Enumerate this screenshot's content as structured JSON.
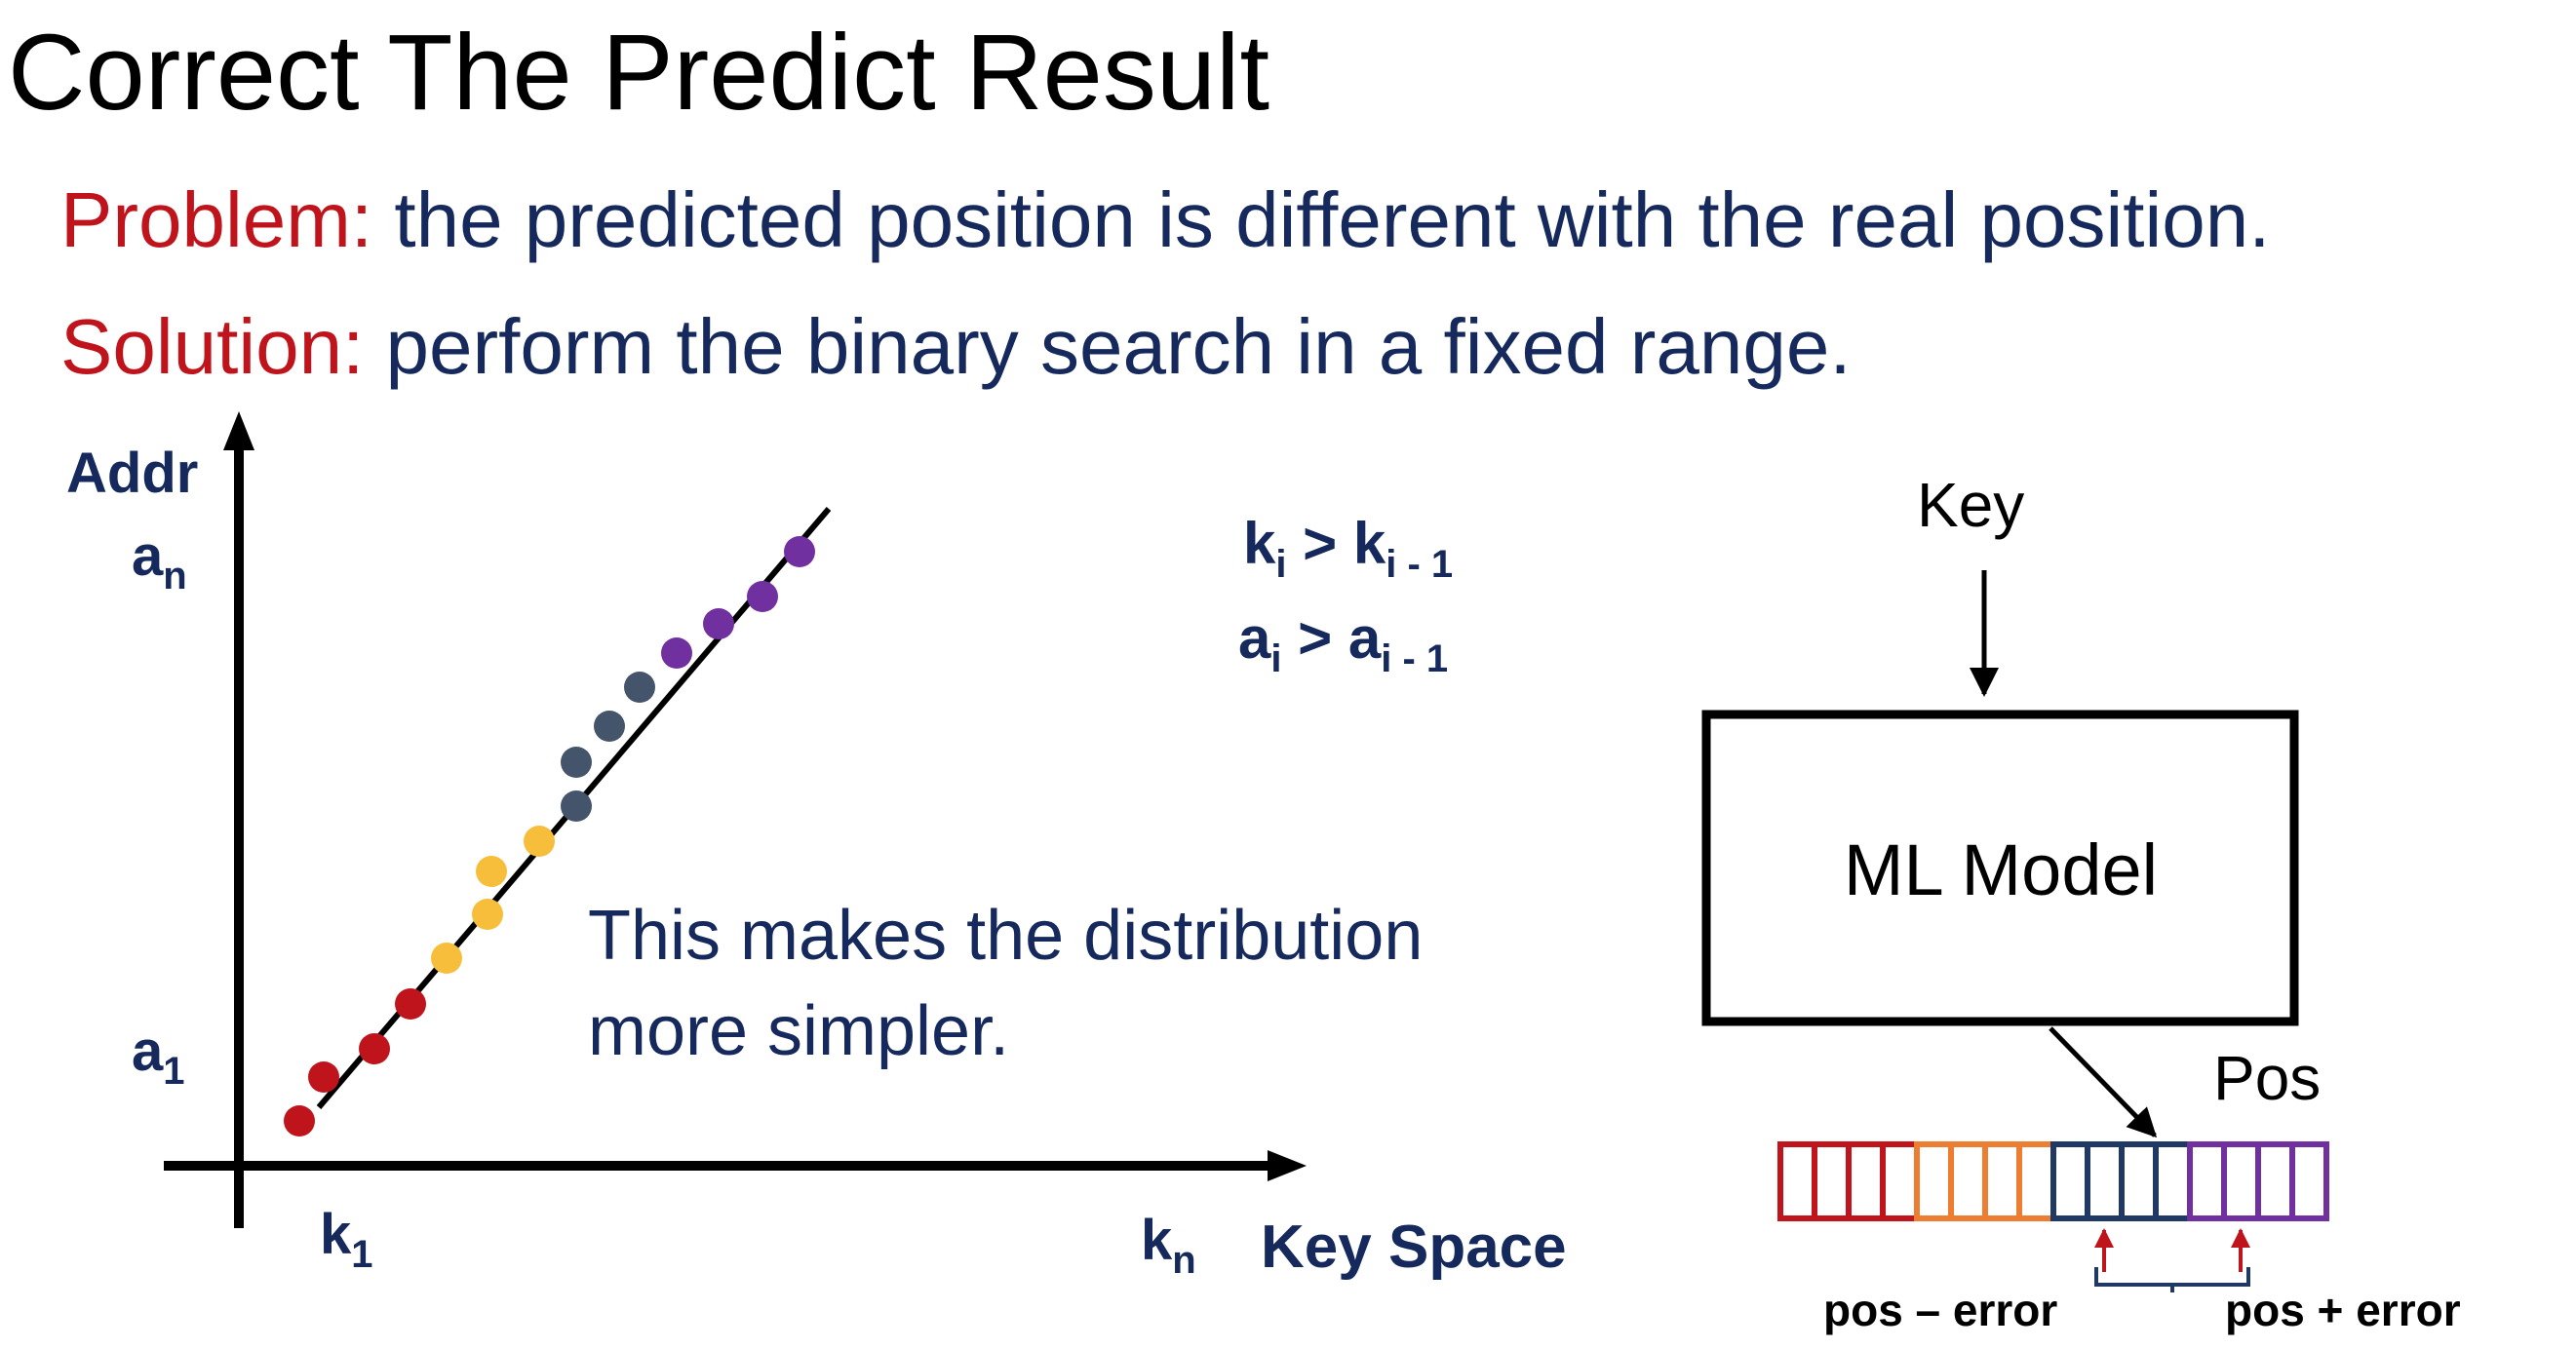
{
  "slide": {
    "title": "Correct The Predict Result",
    "problem": {
      "label": "Problem:",
      "text": " the predicted position is different with the real position."
    },
    "solution": {
      "label": "Solution:",
      "text": " perform the binary search in a fixed range."
    }
  },
  "plot": {
    "y_axis_label": "Addr",
    "x_axis_label": "Key Space",
    "y_tick_top": {
      "base": "a",
      "sub": "n"
    },
    "y_tick_bottom": {
      "base": "a",
      "sub": "1"
    },
    "x_tick_left": {
      "base": "k",
      "sub": "1"
    },
    "x_tick_right": {
      "base": "k",
      "sub": "n"
    },
    "condition_k": {
      "lhs": "k",
      "lhs_sub": "i",
      "op": " > ",
      "rhs": "k",
      "rhs_sub": "i - 1"
    },
    "condition_a": {
      "lhs": "a",
      "lhs_sub": "i",
      "op": " > ",
      "rhs": "a",
      "rhs_sub": "i - 1"
    },
    "note_line1": "This makes the distribution",
    "note_line2": "more simpler.",
    "colors": {
      "red": "#c0141c",
      "yellow": "#f7be3b",
      "gray": "#44546a",
      "purple": "#7030a0"
    }
  },
  "model": {
    "input_label": "Key",
    "box_label": "ML Model",
    "output_label": "Pos",
    "left_bound_label": "pos – error",
    "right_bound_label": "pos + error",
    "segment_colors": [
      "#c0141c",
      "#ed7d31",
      "#1f3864",
      "#7030a0"
    ]
  }
}
